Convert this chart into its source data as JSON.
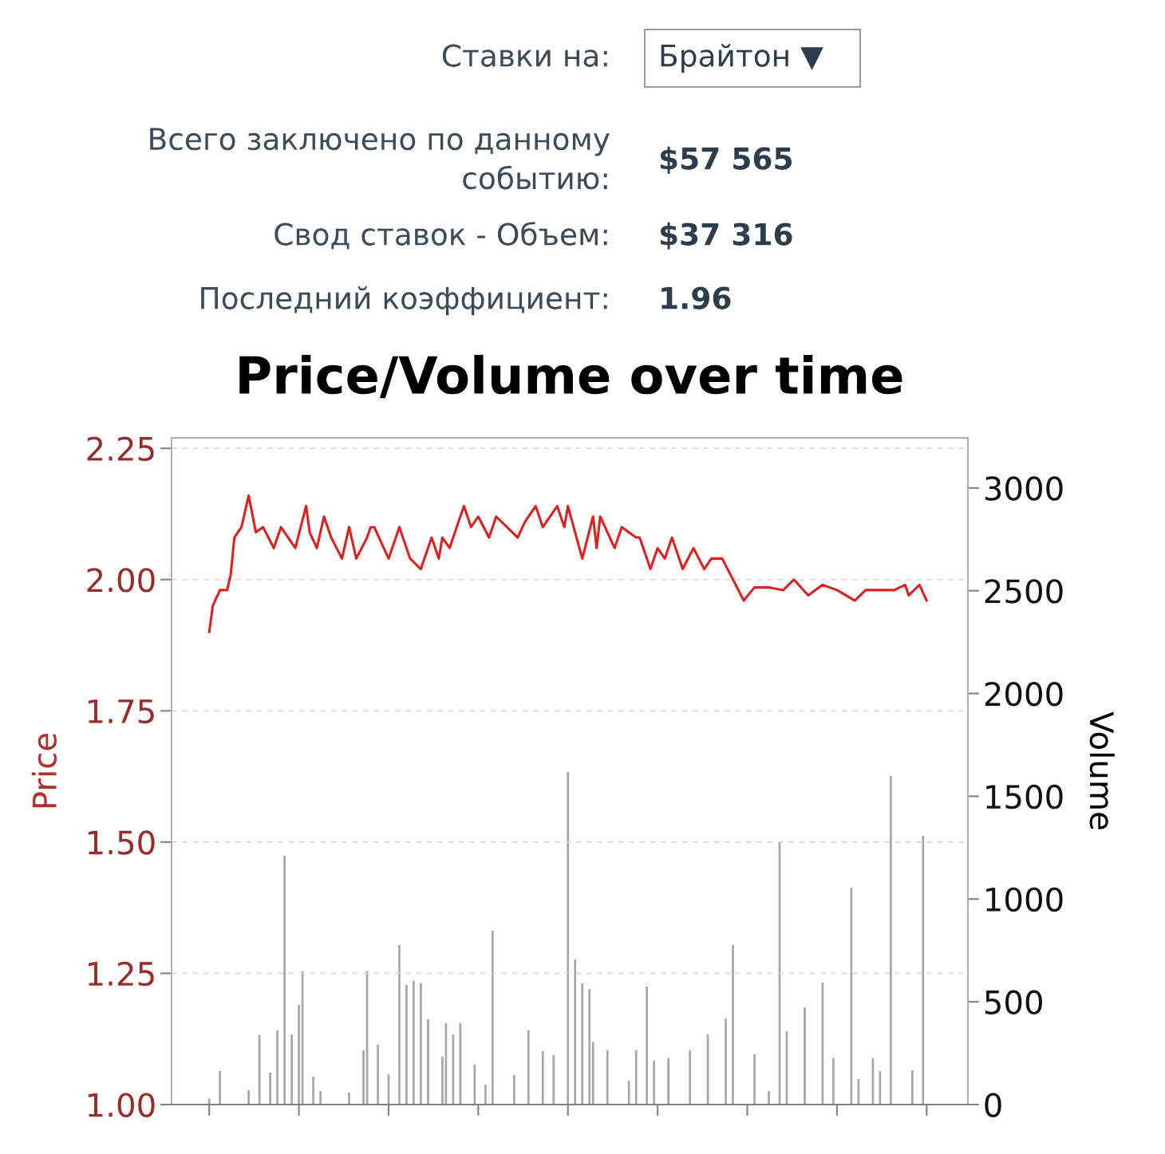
{
  "chart_data": {
    "type": "line",
    "title": "Price/Volume over time",
    "ylabel": "Price",
    "y2label": "Volume",
    "annotations": [
      "Ставки на:",
      "Брайтон ▼",
      "Всего заключено по данному\nсобытию:",
      "$57 565",
      "Свод ставок - Объем:",
      "$37 316",
      "Последний коэффициент:",
      "1.96"
    ],
    "categories": [
      null,
      null,
      null,
      null,
      null,
      null,
      null,
      null,
      null,
      null,
      null,
      null,
      null,
      null,
      null,
      null,
      null,
      null,
      null,
      null,
      null,
      null,
      null,
      null,
      null,
      null,
      null,
      null,
      null,
      null,
      null,
      null,
      null,
      null,
      null,
      null,
      null,
      null,
      null,
      null,
      null,
      null,
      null,
      null,
      null,
      null,
      null,
      null,
      null,
      null,
      null,
      null,
      null,
      null,
      null,
      null,
      null,
      null,
      null,
      null,
      null,
      null,
      null,
      null,
      null,
      null,
      null,
      null,
      null,
      null,
      null,
      null,
      null,
      null,
      null,
      null,
      null,
      null,
      null,
      null,
      null,
      null,
      null,
      null,
      null,
      null,
      null,
      null,
      null,
      null,
      null,
      null,
      null,
      null,
      null,
      null,
      null,
      null,
      null,
      null,
      null,
      null,
      null,
      null,
      null,
      null,
      null,
      null,
      null,
      null,
      null,
      null,
      null,
      null,
      null,
      null,
      null,
      null,
      null,
      null,
      null,
      null,
      null,
      null,
      null,
      null,
      null,
      null,
      null,
      null,
      null,
      null,
      null,
      null,
      null,
      null,
      null,
      null,
      null,
      null,
      null,
      null,
      null,
      null,
      null,
      null,
      null,
      null,
      null,
      null,
      null,
      null,
      null,
      null,
      null,
      null,
      null,
      null,
      null,
      null,
      null,
      null,
      null,
      null,
      null,
      null,
      null,
      null,
      null,
      null,
      null,
      null,
      null,
      null,
      null,
      null,
      null,
      null,
      null,
      null,
      null,
      null,
      null,
      null,
      null,
      null,
      null,
      null,
      null,
      null,
      null,
      null,
      null,
      null,
      null,
      null,
      null,
      null,
      null,
      null,
      null,
      null,
      null,
      null,
      null,
      null,
      null,
      null,
      null,
      null,
      null,
      null,
      null,
      null,
      null,
      null,
      null,
      null,
      null,
      null,
      null,
      null
    ],
    "ylim": [
      1.0,
      2.27
    ],
    "yticks": [
      {
        "value": 1.0,
        "label": "1.00"
      },
      {
        "value": 1.25,
        "label": "1.25"
      },
      {
        "value": 1.5,
        "label": "1.50"
      },
      {
        "value": 1.75,
        "label": "1.75"
      },
      {
        "value": 2.0,
        "label": "2.00"
      },
      {
        "value": 2.25,
        "label": "2.25"
      }
    ],
    "y2lim": [
      0,
      3244
    ],
    "y2ticks": [
      0,
      500,
      1000,
      1500,
      2000,
      2500,
      3000
    ],
    "grid": "y",
    "series": [
      {
        "type": "bar",
        "axis": "y2",
        "color": "#a6a6a6",
        "values": [
          null,
          null,
          null,
          null,
          null,
          null,
          null,
          null,
          null,
          null,
          30,
          null,
          null,
          163,
          null,
          null,
          null,
          null,
          null,
          null,
          null,
          70,
          null,
          null,
          338,
          null,
          null,
          155,
          null,
          361,
          null,
          1211,
          null,
          341,
          null,
          485,
          648,
          null,
          null,
          136,
          null,
          66,
          null,
          null,
          null,
          null,
          null,
          null,
          null,
          58,
          null,
          null,
          null,
          264,
          648,
          null,
          null,
          291,
          null,
          null,
          147,
          null,
          null,
          776,
          null,
          582,
          null,
          601,
          null,
          590,
          null,
          415,
          null,
          null,
          null,
          233,
          396,
          null,
          341,
          null,
          396,
          null,
          null,
          null,
          194,
          null,
          null,
          97,
          null,
          846,
          null,
          null,
          null,
          null,
          null,
          144,
          null,
          null,
          null,
          361,
          null,
          null,
          null,
          260,
          null,
          null,
          241,
          null,
          null,
          null,
          1618,
          null,
          706,
          null,
          590,
          null,
          563,
          303,
          null,
          null,
          null,
          264,
          null,
          null,
          null,
          null,
          null,
          116,
          null,
          264,
          null,
          null,
          574,
          null,
          213,
          null,
          null,
          null,
          225,
          null,
          null,
          null,
          null,
          null,
          264,
          null,
          null,
          null,
          null,
          341,
          null,
          null,
          null,
          null,
          419,
          null,
          776,
          null,
          null,
          null,
          null,
          null,
          244,
          null,
          null,
          null,
          66,
          null,
          null,
          1281,
          null,
          357,
          null,
          null,
          null,
          null,
          473,
          null,
          null,
          null,
          null,
          594,
          null,
          null,
          225,
          null,
          null,
          null,
          null,
          1055,
          null,
          124,
          null,
          null,
          null,
          225,
          null,
          163,
          null,
          null,
          1599,
          null,
          null,
          null,
          null,
          null,
          167,
          null,
          null,
          1308,
          null,
          null,
          null,
          null,
          null,
          null,
          null,
          null,
          null,
          null,
          null,
          null
        ]
      },
      {
        "axis": "y",
        "color": "#e02020",
        "values": [
          null,
          null,
          null,
          null,
          null,
          null,
          null,
          null,
          null,
          null,
          1.9,
          1.95,
          null,
          1.98,
          null,
          1.98,
          2.01,
          2.08,
          null,
          2.1,
          null,
          2.16,
          null,
          2.09,
          null,
          2.1,
          null,
          null,
          2.06,
          null,
          2.1,
          null,
          2.08,
          null,
          2.06,
          null,
          null,
          2.14,
          2.09,
          null,
          2.06,
          null,
          2.12,
          null,
          2.08,
          null,
          null,
          2.04,
          null,
          2.1,
          null,
          2.04,
          null,
          null,
          2.08,
          2.1,
          2.1,
          null,
          null,
          null,
          2.04,
          null,
          null,
          2.1,
          null,
          null,
          2.04,
          null,
          null,
          2.02,
          null,
          null,
          2.08,
          null,
          2.04,
          2.08,
          null,
          2.06,
          null,
          null,
          null,
          2.14,
          null,
          2.1,
          null,
          2.12,
          null,
          null,
          2.08,
          null,
          2.12,
          null,
          null,
          2.1,
          null,
          null,
          2.08,
          null,
          2.11,
          null,
          null,
          2.14,
          null,
          2.1,
          null,
          null,
          null,
          2.14,
          null,
          2.1,
          2.14,
          null,
          null,
          null,
          2.04,
          null,
          null,
          2.12,
          2.06,
          2.12,
          null,
          null,
          null,
          2.06,
          null,
          2.1,
          null,
          null,
          null,
          2.08,
          2.08,
          null,
          null,
          2.02,
          null,
          2.06,
          null,
          2.04,
          null,
          2.08,
          null,
          null,
          2.02,
          null,
          null,
          2.06,
          null,
          null,
          2.02,
          null,
          2.04,
          null,
          null,
          2.04,
          null,
          null,
          null,
          null,
          null,
          1.96,
          null,
          null,
          1.985,
          null,
          null,
          null,
          1.985,
          null,
          null,
          null,
          1.98,
          null,
          null,
          2.0,
          null,
          null,
          null,
          1.97,
          null,
          null,
          null,
          1.99,
          null,
          null,
          null,
          1.98,
          null,
          null,
          null,
          null,
          1.96,
          null,
          null,
          1.98,
          null,
          null,
          null,
          null,
          null,
          null,
          null,
          1.98,
          null,
          null,
          1.99,
          1.97,
          null,
          null,
          1.99,
          null,
          1.96,
          null,
          null,
          null,
          null,
          null,
          null,
          null,
          null,
          null,
          null,
          null
        ]
      }
    ]
  }
}
